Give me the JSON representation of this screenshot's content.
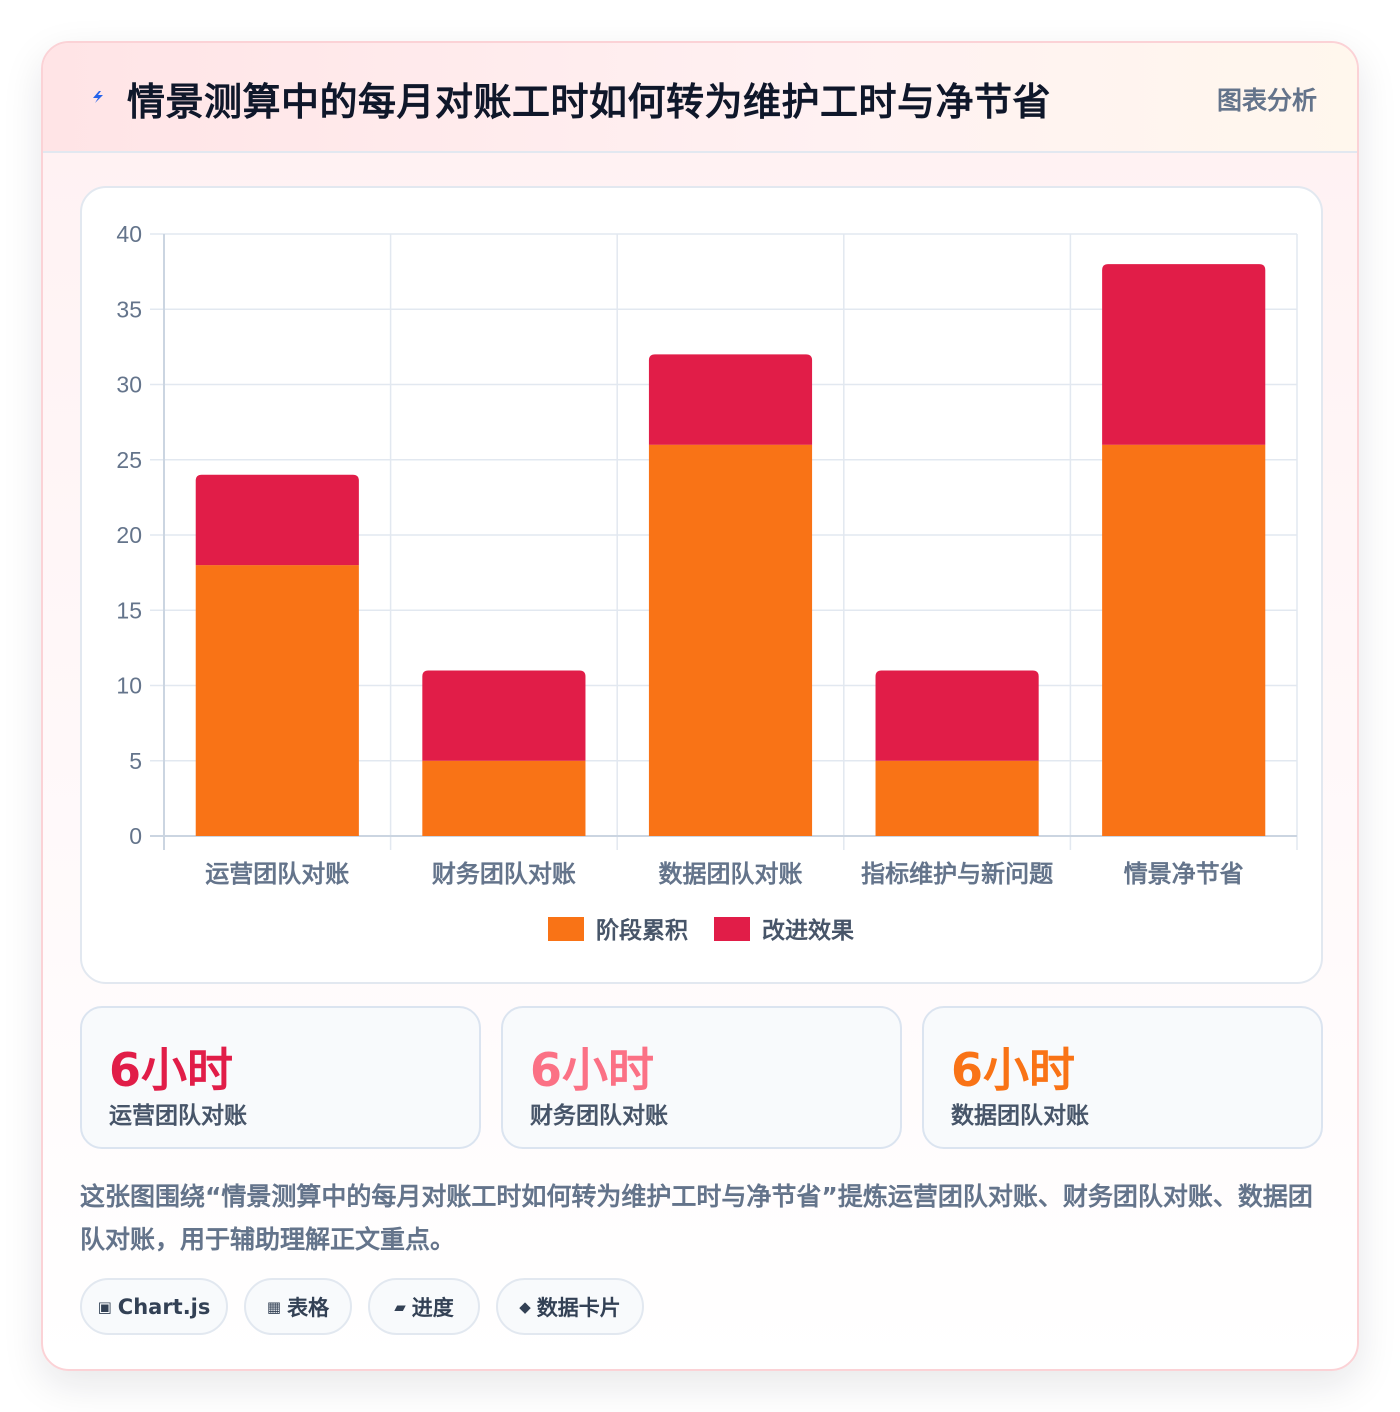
{
  "header": {
    "icon": "lightning-icon",
    "title": "情景测算中的每月对账工时如何转为维护工时与净节省",
    "tag": "图表分析"
  },
  "chart_data": {
    "type": "bar",
    "stacked": true,
    "categories": [
      "运营团队对账",
      "财务团队对账",
      "数据团队对账",
      "指标维护与新问题",
      "情景净节省"
    ],
    "series": [
      {
        "name": "阶段累积",
        "values": [
          18,
          5,
          26,
          5,
          26
        ],
        "color": "#f97316"
      },
      {
        "name": "改进效果",
        "values": [
          6,
          6,
          6,
          6,
          12
        ],
        "color": "#e11d48"
      }
    ],
    "ylim": [
      0,
      40
    ],
    "yticks": [
      0,
      5,
      10,
      15,
      20,
      25,
      30,
      35,
      40
    ],
    "grid": true,
    "legend": "bottom"
  },
  "stats": [
    {
      "value": "6小时",
      "label": "运营团队对账",
      "color": "#e11d48"
    },
    {
      "value": "6小时",
      "label": "财务团队对账",
      "color": "#fb7185"
    },
    {
      "value": "6小时",
      "label": "数据团队对账",
      "color": "#f97316"
    }
  ],
  "description": "这张图围绕“情景测算中的每月对账工时如何转为维护工时与净节省”提炼运营团队对账、财务团队对账、数据团队对账，用于辅助理解正文重点。",
  "chips": [
    {
      "icon": "▣",
      "icon_name": "chart-icon",
      "label": "Chart.js"
    },
    {
      "icon": "▦",
      "icon_name": "table-icon",
      "label": "表格"
    },
    {
      "icon": "▰",
      "icon_name": "progress-icon",
      "label": "进度"
    },
    {
      "icon": "◆",
      "icon_name": "diamond-icon",
      "label": "数据卡片"
    }
  ]
}
